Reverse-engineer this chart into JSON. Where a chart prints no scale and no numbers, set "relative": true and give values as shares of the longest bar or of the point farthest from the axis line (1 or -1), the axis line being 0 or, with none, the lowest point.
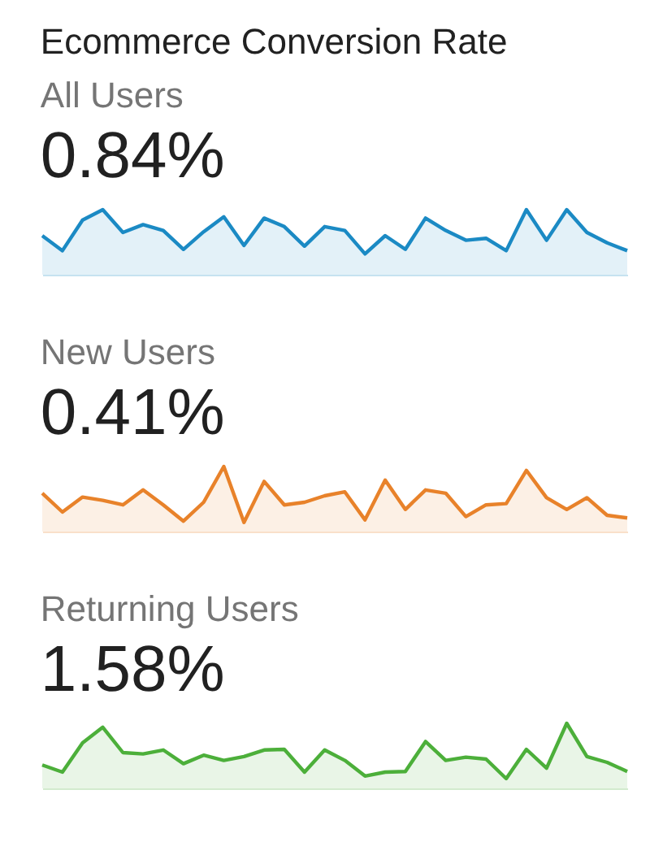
{
  "chart_data": [
    {
      "type": "area",
      "title": "Ecommerce Conversion Rate",
      "subtitle": "All Users",
      "annotations": [
        "0.84%"
      ],
      "relative": true,
      "color": "#1b8ac4",
      "categories": [
        null,
        null,
        null,
        null,
        null,
        null,
        null,
        null,
        null,
        null,
        null,
        null,
        null,
        null,
        null,
        null,
        null,
        null,
        null,
        null,
        null,
        null,
        null,
        null,
        null,
        null,
        null,
        null,
        null,
        null
      ],
      "values": [
        0.6,
        0.37,
        0.84,
        1,
        0.65,
        0.77,
        0.68,
        0.39,
        0.66,
        0.89,
        0.45,
        0.87,
        0.74,
        0.44,
        0.74,
        0.68,
        0.32,
        0.6,
        0.39,
        0.87,
        0.68,
        0.53,
        0.56,
        0.37,
        1,
        0.53,
        1,
        0.65,
        0.49,
        0.37
      ]
    },
    {
      "type": "area",
      "subtitle": "New Users",
      "annotations": [
        "0.41%"
      ],
      "relative": true,
      "color": "#e8822a",
      "categories": [
        null,
        null,
        null,
        null,
        null,
        null,
        null,
        null,
        null,
        null,
        null,
        null,
        null,
        null,
        null,
        null,
        null,
        null,
        null,
        null,
        null,
        null,
        null,
        null,
        null,
        null,
        null,
        null,
        null,
        null
      ],
      "values": [
        0.59,
        0.3,
        0.53,
        0.48,
        0.41,
        0.64,
        0.41,
        0.16,
        0.45,
        1,
        0.14,
        0.77,
        0.41,
        0.45,
        0.55,
        0.61,
        0.18,
        0.79,
        0.34,
        0.64,
        0.59,
        0.23,
        0.41,
        0.43,
        0.94,
        0.52,
        0.34,
        0.52,
        0.25,
        0.21
      ]
    },
    {
      "type": "area",
      "subtitle": "Returning Users",
      "annotations": [
        "1.58%"
      ],
      "relative": true,
      "color": "#4caf3a",
      "categories": [
        null,
        null,
        null,
        null,
        null,
        null,
        null,
        null,
        null,
        null,
        null,
        null,
        null,
        null,
        null,
        null,
        null,
        null,
        null,
        null,
        null,
        null,
        null,
        null,
        null,
        null,
        null,
        null,
        null,
        null
      ],
      "values": [
        0.36,
        0.25,
        0.7,
        0.94,
        0.55,
        0.53,
        0.59,
        0.38,
        0.51,
        0.43,
        0.49,
        0.59,
        0.6,
        0.25,
        0.59,
        0.43,
        0.19,
        0.25,
        0.26,
        0.72,
        0.43,
        0.48,
        0.45,
        0.15,
        0.6,
        0.31,
        1,
        0.49,
        0.4,
        0.26
      ]
    }
  ]
}
